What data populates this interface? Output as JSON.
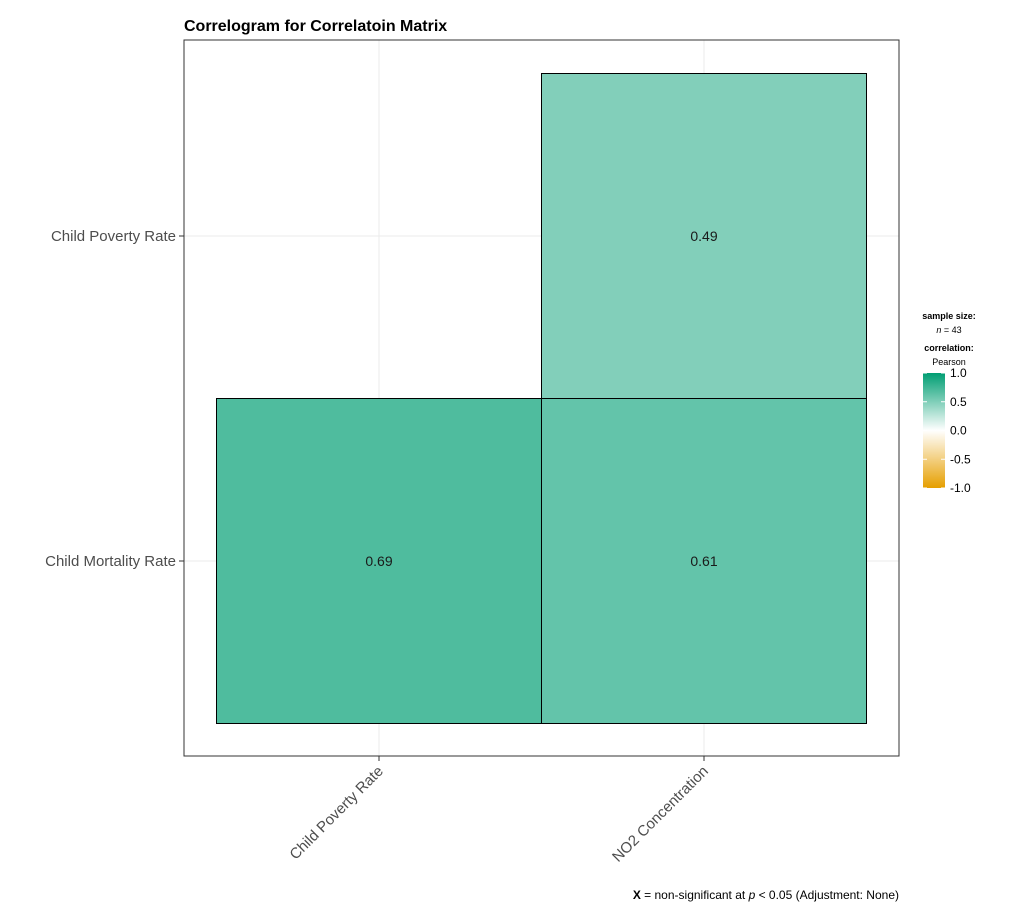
{
  "chart_data": {
    "type": "heatmap",
    "title": "Correlogram for Correlatoin Matrix",
    "x_labels": [
      "Child Poverty Rate",
      "NO2 Concentration"
    ],
    "y_labels": [
      "Child Mortality Rate",
      "Child Poverty Rate"
    ],
    "cells": [
      {
        "x": "Child Poverty Rate",
        "y": "Child Mortality Rate",
        "value": 0.69,
        "label": "0.69"
      },
      {
        "x": "NO2 Concentration",
        "y": "Child Mortality Rate",
        "value": 0.61,
        "label": "0.61"
      },
      {
        "x": "NO2 Concentration",
        "y": "Child Poverty Rate",
        "value": 0.49,
        "label": "0.49"
      }
    ],
    "legend": {
      "sample_size_title": "sample size:",
      "sample_size_prefix": "n",
      "sample_size_value": "= 43",
      "correlation_title": "correlation:",
      "method": "Pearson",
      "ticks": [
        "1.0",
        "0.5",
        "0.0",
        "-0.5",
        "-1.0"
      ],
      "tick_values": [
        1.0,
        0.5,
        0.0,
        -0.5,
        -1.0
      ],
      "color_high": "#009E73",
      "color_mid": "#ffffff",
      "color_low": "#E69F00"
    },
    "caption": {
      "x_mark": "X",
      "text_a": " = non-significant at ",
      "p": "p",
      "text_b": " < 0.05 (Adjustment: None)"
    }
  }
}
